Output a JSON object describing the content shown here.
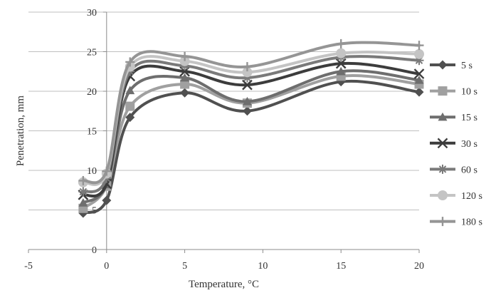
{
  "chart_data": {
    "type": "line",
    "smooth": true,
    "title": "",
    "xlabel": "Temperature, °C",
    "ylabel": "Penetration, mm",
    "xlim": [
      -5,
      20
    ],
    "ylim": [
      0,
      30
    ],
    "xticks": [
      -5,
      0,
      5,
      10,
      15,
      20
    ],
    "yticks": [
      0,
      5,
      10,
      15,
      20,
      25,
      30
    ],
    "x": [
      -1.5,
      0,
      1.5,
      5,
      9,
      15,
      20
    ],
    "grid": "horizontal",
    "legend_position": "right",
    "series": [
      {
        "name": "5 s",
        "values": [
          4.6,
          6.2,
          16.7,
          19.8,
          17.5,
          21.2,
          19.9
        ],
        "color": "#505050",
        "marker": "diamond"
      },
      {
        "name": "10 s",
        "values": [
          5.2,
          8.0,
          18.1,
          20.9,
          18.5,
          21.9,
          20.9
        ],
        "color": "#a0a0a0",
        "marker": "square"
      },
      {
        "name": "15 s",
        "values": [
          5.9,
          8.2,
          20.1,
          21.7,
          18.7,
          22.5,
          21.4
        ],
        "color": "#6e6e6e",
        "marker": "triangle"
      },
      {
        "name": "30 s",
        "values": [
          6.9,
          8.3,
          21.9,
          22.5,
          20.8,
          23.5,
          22.2
        ],
        "color": "#3c3c3c",
        "marker": "x"
      },
      {
        "name": "60 s",
        "values": [
          7.3,
          9.0,
          22.5,
          23.2,
          21.7,
          24.3,
          23.9
        ],
        "color": "#7a7a7a",
        "marker": "star"
      },
      {
        "name": "120 s",
        "values": [
          8.5,
          9.6,
          23.1,
          23.8,
          22.4,
          24.8,
          24.7
        ],
        "color": "#c4c4c4",
        "marker": "circle"
      },
      {
        "name": "180 s",
        "values": [
          8.7,
          9.9,
          23.7,
          24.4,
          23.1,
          26.0,
          25.8
        ],
        "color": "#959595",
        "marker": "plus"
      }
    ]
  }
}
